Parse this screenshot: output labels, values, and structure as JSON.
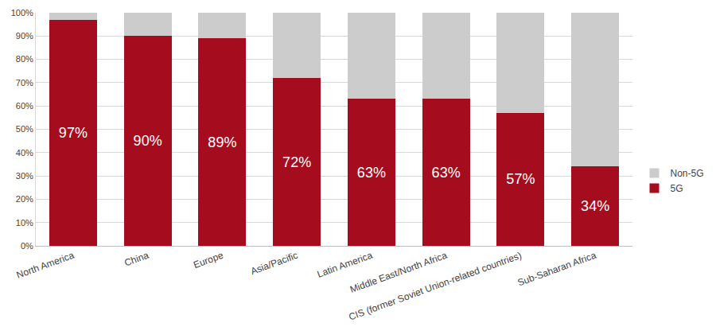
{
  "chart_data": {
    "type": "bar",
    "stacked": true,
    "grid": true,
    "legend": "right",
    "data_labels": true,
    "categories": [
      "North America",
      "China",
      "Europe",
      "Asia/Pacific",
      "Latin America",
      "Middle East/North Africa",
      "CIS (former Soviet Union-related countries)",
      "Sub-Saharan Africa"
    ],
    "series": [
      {
        "name": "5G",
        "color": "#a50d1e",
        "values": [
          97,
          90,
          89,
          72,
          63,
          63,
          57,
          34
        ],
        "value_labels": [
          "97%",
          "90%",
          "89%",
          "72%",
          "63%",
          "63%",
          "57%",
          "34%"
        ]
      },
      {
        "name": "Non-5G",
        "color": "#cccccc",
        "values": [
          3,
          10,
          11,
          28,
          37,
          37,
          43,
          66
        ]
      }
    ],
    "ylim": [
      0,
      100
    ],
    "yticks": [
      {
        "value": 0,
        "label": "0%"
      },
      {
        "value": 10,
        "label": "10%"
      },
      {
        "value": 20,
        "label": "20%"
      },
      {
        "value": 30,
        "label": "30%"
      },
      {
        "value": 40,
        "label": "40%"
      },
      {
        "value": 50,
        "label": "50%"
      },
      {
        "value": 60,
        "label": "60%"
      },
      {
        "value": 70,
        "label": "70%"
      },
      {
        "value": 80,
        "label": "80%"
      },
      {
        "value": 90,
        "label": "90%"
      },
      {
        "value": 100,
        "label": "100%"
      }
    ]
  }
}
